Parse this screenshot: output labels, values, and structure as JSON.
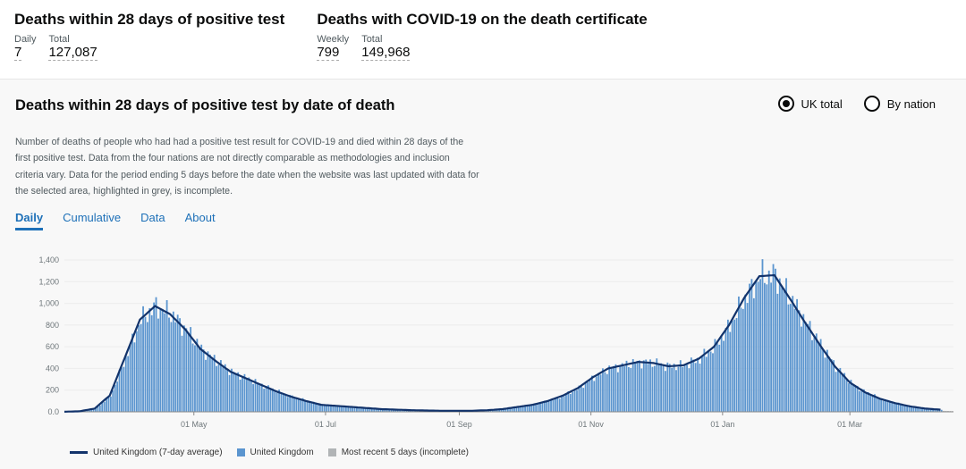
{
  "header": {
    "cards": [
      {
        "title": "Deaths within 28 days of positive test",
        "stats": [
          {
            "label": "Daily",
            "value": "7"
          },
          {
            "label": "Total",
            "value": "127,087"
          }
        ]
      },
      {
        "title": "Deaths with COVID-19 on the death certificate",
        "stats": [
          {
            "label": "Weekly",
            "value": "799"
          },
          {
            "label": "Total",
            "value": "149,968"
          }
        ]
      }
    ]
  },
  "panel": {
    "title": "Deaths within 28 days of positive test by date of death",
    "radios": [
      {
        "label": "UK total",
        "selected": true
      },
      {
        "label": "By nation",
        "selected": false
      }
    ],
    "description": "Number of deaths of people who had had a positive test result for COVID-19 and died within 28 days of the first positive test. Data from the four nations are not directly comparable as methodologies and inclusion criteria vary. Data for the period ending 5 days before the date when the website was last updated with data for the selected area, highlighted in grey, is incomplete.",
    "tabs": [
      "Daily",
      "Cumulative",
      "Data",
      "About"
    ],
    "active_tab": "Daily"
  },
  "colors": {
    "bar": "#5b95cf",
    "line": "#12336b",
    "incomplete": "#b1b4b6",
    "link": "#1d70b8"
  },
  "chart_data": {
    "type": "bar",
    "start_date": "2020-03-02",
    "days_total": 412,
    "incomplete_days": 5,
    "ylim": [
      0,
      1400
    ],
    "yticks": [
      0,
      200,
      400,
      600,
      800,
      1000,
      1200,
      1400
    ],
    "ytick_labels": [
      "0.0",
      "200",
      "400",
      "600",
      "800",
      "1,000",
      "1,200",
      "1,400"
    ],
    "xticks": [
      {
        "day": 60,
        "label": "01 May"
      },
      {
        "day": 121,
        "label": "01 Jul"
      },
      {
        "day": 183,
        "label": "01 Sep"
      },
      {
        "day": 244,
        "label": "01 Nov"
      },
      {
        "day": 305,
        "label": "01 Jan"
      },
      {
        "day": 364,
        "label": "01 Mar"
      }
    ],
    "weekly_avg_step_days": 7,
    "series": [
      {
        "name": "United Kingdom (7-day average)",
        "type": "line",
        "weekly_values": [
          1,
          5,
          30,
          150,
          500,
          850,
          975,
          900,
          760,
          580,
          470,
          370,
          310,
          250,
          190,
          140,
          100,
          65,
          55,
          45,
          35,
          25,
          20,
          15,
          12,
          10,
          10,
          10,
          15,
          25,
          45,
          65,
          100,
          150,
          220,
          320,
          400,
          430,
          460,
          450,
          420,
          430,
          490,
          600,
          800,
          1050,
          1250,
          1260,
          1050,
          830,
          620,
          420,
          270,
          180,
          120,
          80,
          50,
          30,
          20,
          10
        ]
      },
      {
        "name": "United Kingdom",
        "type": "bar"
      },
      {
        "name": "Most recent 5 days (incomplete)",
        "type": "bar"
      }
    ],
    "legend": [
      "United Kingdom (7-day average)",
      "United Kingdom",
      "Most recent 5 days (incomplete)"
    ],
    "legend_position": "bottom-left",
    "grid": true
  }
}
